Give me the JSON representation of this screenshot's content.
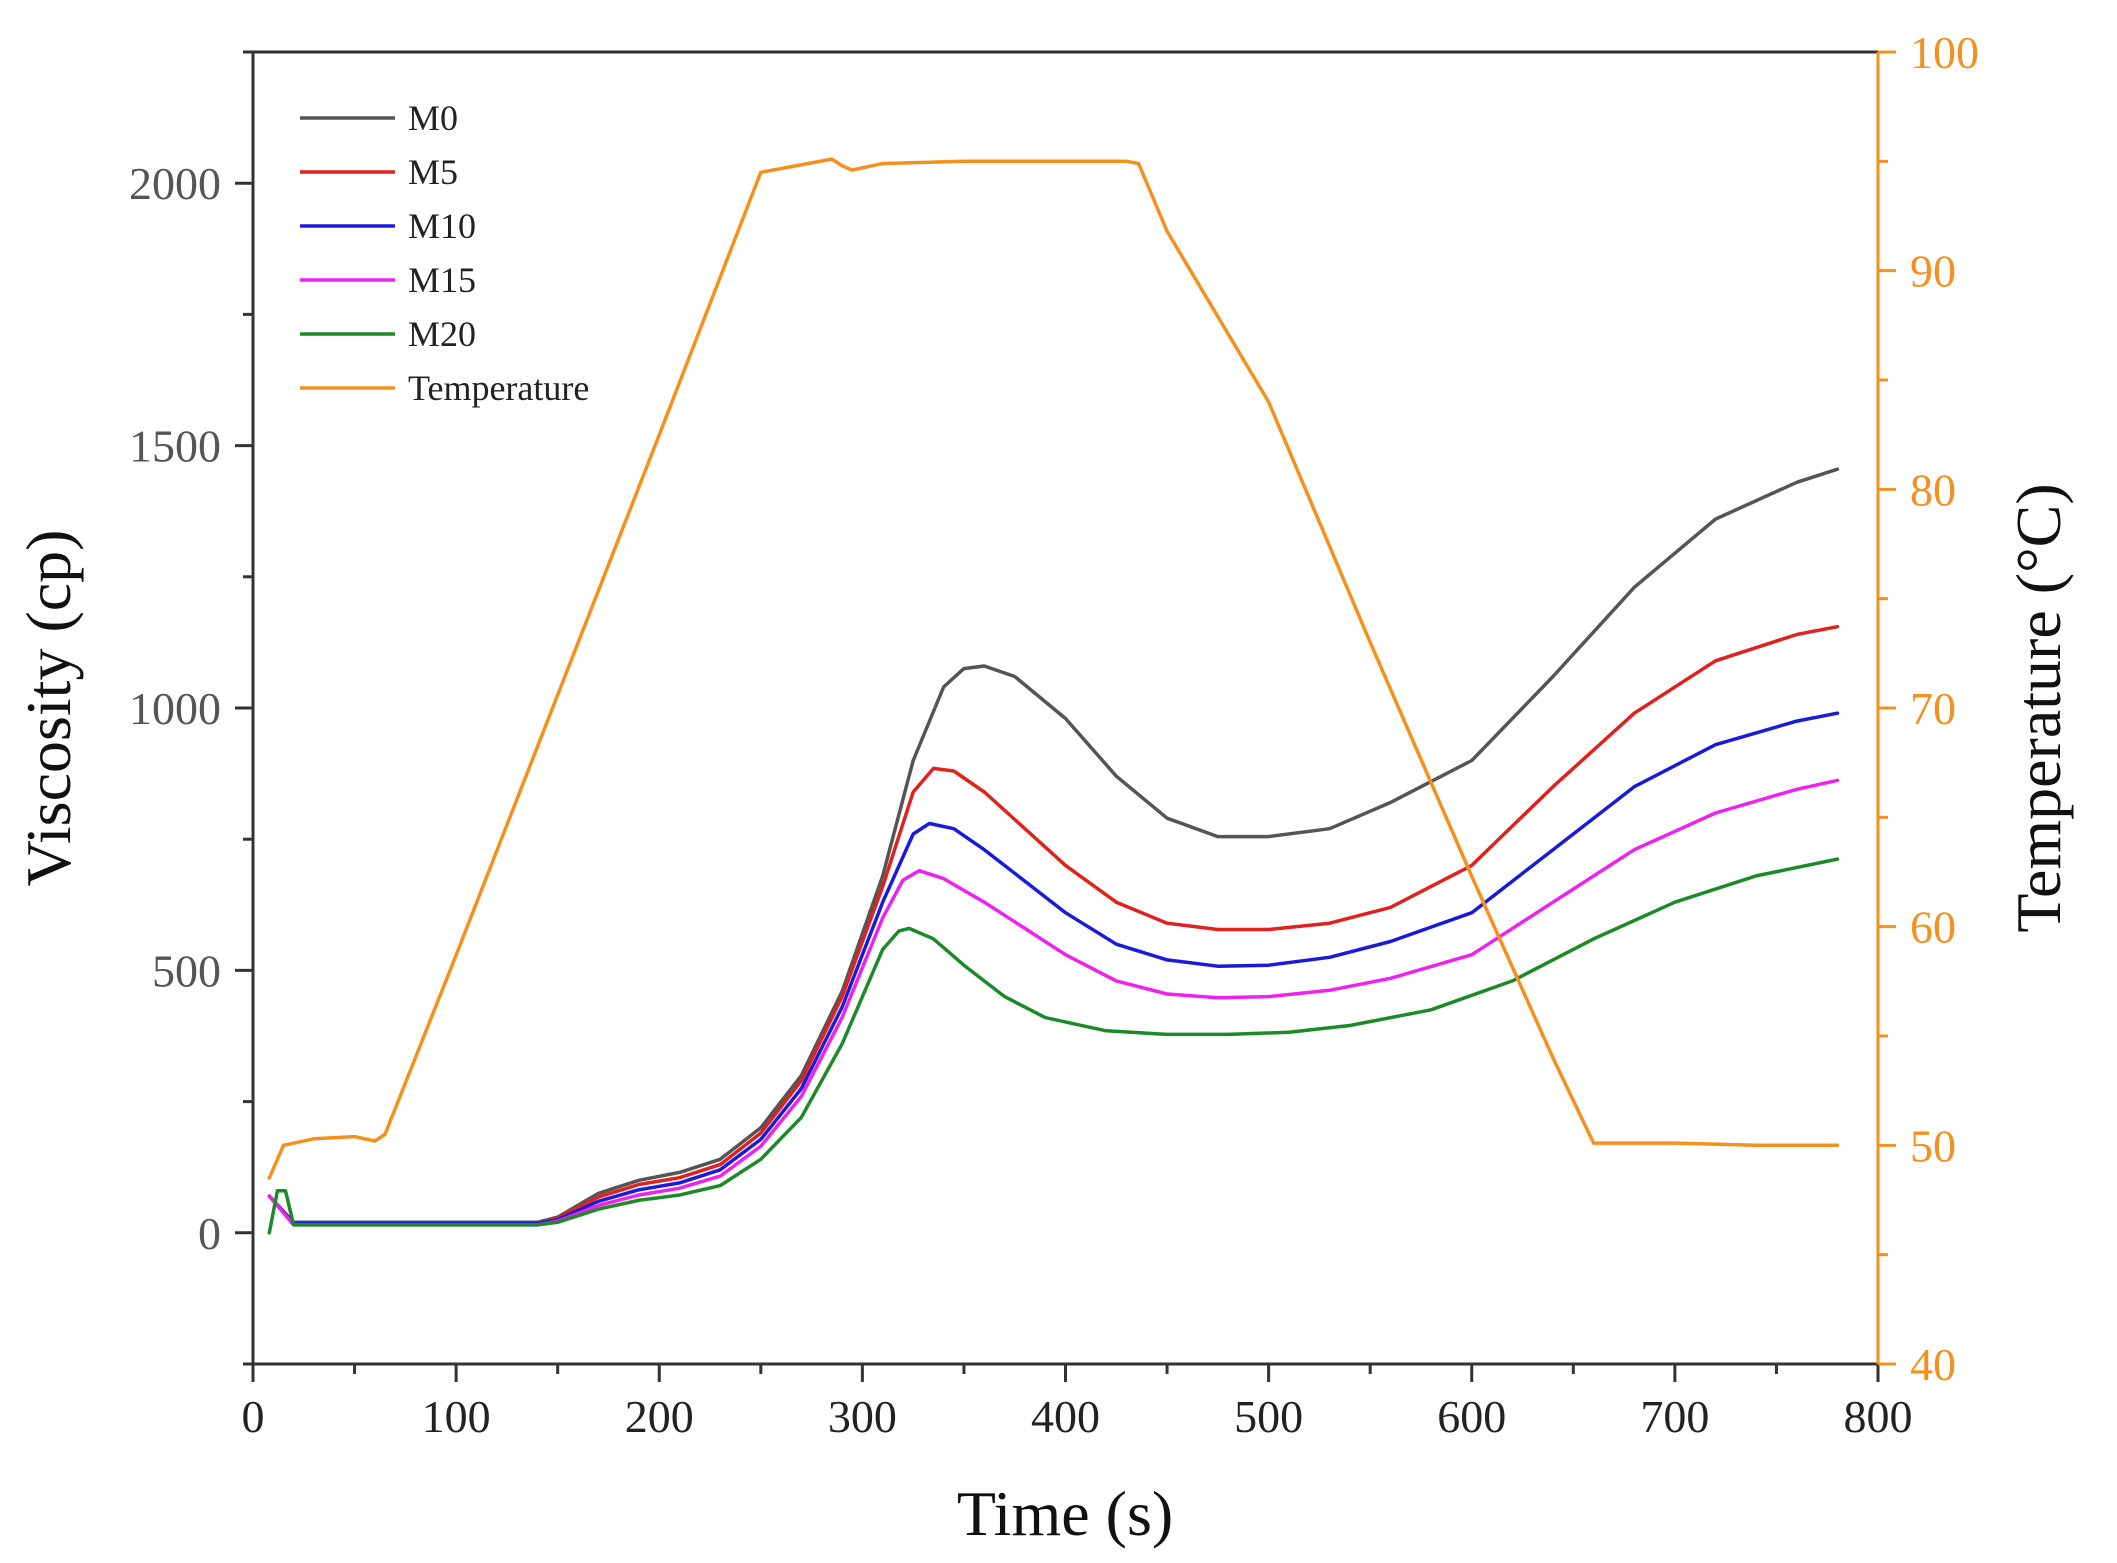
{
  "chart_data": {
    "type": "line",
    "title": "",
    "xlabel": "Time (s)",
    "ylabel": "Viscosity (cp)",
    "y2label": "Temperature (°C)",
    "xlim": [
      0,
      800
    ],
    "ylim": [
      -250,
      2250
    ],
    "y2lim": [
      40,
      100
    ],
    "xticks": [
      "0",
      "100",
      "200",
      "300",
      "400",
      "500",
      "600",
      "700",
      "800"
    ],
    "yticks": [
      "0",
      "500",
      "1000",
      "1500",
      "2000"
    ],
    "y2ticks": [
      "40",
      "50",
      "60",
      "70",
      "80",
      "90",
      "100"
    ],
    "grid": false,
    "legend_position": "top-left",
    "series": [
      {
        "name": "M0",
        "color": "#555555",
        "axis": "left",
        "x": [
          8,
          20,
          60,
          100,
          140,
          150,
          170,
          190,
          210,
          230,
          250,
          270,
          290,
          310,
          325,
          340,
          350,
          360,
          375,
          400,
          425,
          450,
          475,
          500,
          530,
          560,
          600,
          640,
          680,
          720,
          760,
          780
        ],
        "y": [
          70,
          20,
          20,
          20,
          20,
          30,
          75,
          100,
          115,
          140,
          200,
          300,
          460,
          680,
          900,
          1040,
          1075,
          1080,
          1060,
          980,
          870,
          790,
          755,
          755,
          770,
          820,
          900,
          1060,
          1230,
          1360,
          1430,
          1455
        ]
      },
      {
        "name": "M5",
        "color": "#e0211e",
        "axis": "left",
        "x": [
          8,
          20,
          60,
          100,
          140,
          150,
          170,
          190,
          210,
          230,
          250,
          270,
          290,
          310,
          325,
          335,
          345,
          360,
          380,
          400,
          425,
          450,
          475,
          500,
          530,
          560,
          600,
          640,
          680,
          720,
          760,
          780
        ],
        "y": [
          70,
          18,
          18,
          18,
          18,
          28,
          68,
          92,
          105,
          130,
          190,
          290,
          450,
          660,
          840,
          885,
          880,
          840,
          770,
          700,
          630,
          590,
          578,
          578,
          590,
          620,
          700,
          850,
          990,
          1090,
          1140,
          1155
        ]
      },
      {
        "name": "M10",
        "color": "#1a1adb",
        "axis": "left",
        "x": [
          8,
          20,
          60,
          100,
          140,
          150,
          170,
          190,
          210,
          230,
          250,
          270,
          290,
          310,
          325,
          333,
          345,
          360,
          380,
          400,
          425,
          450,
          475,
          500,
          530,
          560,
          600,
          640,
          680,
          720,
          760,
          780
        ],
        "y": [
          70,
          18,
          18,
          18,
          18,
          25,
          60,
          82,
          95,
          120,
          178,
          275,
          430,
          630,
          760,
          780,
          770,
          730,
          670,
          610,
          550,
          520,
          508,
          510,
          525,
          555,
          610,
          730,
          850,
          930,
          975,
          990
        ]
      },
      {
        "name": "M15",
        "color": "#ee22ee",
        "axis": "left",
        "x": [
          8,
          20,
          60,
          100,
          140,
          150,
          170,
          190,
          210,
          230,
          250,
          270,
          290,
          310,
          320,
          328,
          340,
          360,
          380,
          400,
          425,
          450,
          475,
          500,
          530,
          560,
          600,
          640,
          680,
          720,
          760,
          780
        ],
        "y": [
          70,
          15,
          15,
          15,
          15,
          22,
          52,
          72,
          85,
          108,
          165,
          260,
          410,
          600,
          672,
          690,
          675,
          630,
          580,
          530,
          480,
          455,
          448,
          450,
          462,
          485,
          530,
          630,
          730,
          800,
          845,
          862
        ]
      },
      {
        "name": "M20",
        "color": "#1d8a2a",
        "axis": "left",
        "x": [
          8,
          12,
          16,
          20,
          60,
          100,
          140,
          150,
          170,
          190,
          210,
          230,
          250,
          270,
          290,
          310,
          318,
          323,
          335,
          350,
          370,
          390,
          420,
          450,
          480,
          510,
          540,
          580,
          620,
          660,
          700,
          740,
          780
        ],
        "y": [
          0,
          80,
          80,
          15,
          15,
          15,
          15,
          20,
          45,
          62,
          72,
          90,
          140,
          220,
          360,
          540,
          575,
          580,
          560,
          510,
          450,
          410,
          385,
          378,
          378,
          382,
          395,
          425,
          480,
          560,
          630,
          680,
          712
        ]
      },
      {
        "name": "Temperature",
        "color": "#f5901e",
        "axis": "right",
        "x": [
          8,
          15,
          30,
          50,
          60,
          65,
          100,
          150,
          200,
          250,
          285,
          290,
          295,
          310,
          350,
          400,
          430,
          436,
          450,
          500,
          550,
          600,
          640,
          660,
          663,
          700,
          740,
          780
        ],
        "y": [
          48.5,
          50,
          50.3,
          50.4,
          50.2,
          50.5,
          58.7,
          70.6,
          82.5,
          94.5,
          95.1,
          94.8,
          94.6,
          94.9,
          95,
          95,
          95,
          94.9,
          91.8,
          84,
          73,
          62.3,
          54,
          50.1,
          50.1,
          50.1,
          50,
          50
        ]
      }
    ]
  }
}
